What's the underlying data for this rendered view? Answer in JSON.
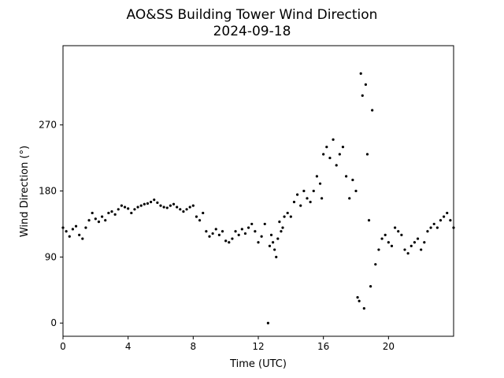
{
  "chart_data": {
    "type": "scatter",
    "title": "AO&SS Building Tower Wind Direction",
    "subtitle": "2024-09-18",
    "xlabel": "Time (UTC)",
    "ylabel": "Wind Direction (°)",
    "xlim": [
      0,
      24
    ],
    "ylim": [
      -18,
      378
    ],
    "xticks": [
      0,
      4,
      8,
      12,
      16,
      20
    ],
    "xtick_labels": [
      "0",
      "4",
      "8",
      "12",
      "16",
      "20"
    ],
    "yticks": [
      0,
      90,
      180,
      270
    ],
    "ytick_labels": [
      "0",
      "90",
      "180",
      "270"
    ],
    "grid": false,
    "marker_color": "#000000",
    "x": [
      0.0,
      0.2,
      0.4,
      0.6,
      0.8,
      1.0,
      1.2,
      1.4,
      1.6,
      1.8,
      2.0,
      2.2,
      2.4,
      2.6,
      2.8,
      3.0,
      3.2,
      3.4,
      3.6,
      3.8,
      4.0,
      4.2,
      4.4,
      4.6,
      4.8,
      5.0,
      5.2,
      5.4,
      5.6,
      5.8,
      6.0,
      6.2,
      6.4,
      6.6,
      6.8,
      7.0,
      7.2,
      7.4,
      7.6,
      7.8,
      8.0,
      8.2,
      8.4,
      8.6,
      8.8,
      9.0,
      9.2,
      9.4,
      9.6,
      9.8,
      10.0,
      10.2,
      10.4,
      10.6,
      10.8,
      11.0,
      11.2,
      11.4,
      11.6,
      11.8,
      12.0,
      12.2,
      12.4,
      12.6,
      12.7,
      12.8,
      12.9,
      13.0,
      13.1,
      13.2,
      13.3,
      13.4,
      13.5,
      13.6,
      13.8,
      14.0,
      14.2,
      14.4,
      14.6,
      14.8,
      15.0,
      15.2,
      15.4,
      15.6,
      15.8,
      15.9,
      16.0,
      16.2,
      16.4,
      16.6,
      16.8,
      17.0,
      17.2,
      17.4,
      17.6,
      17.8,
      18.0,
      18.1,
      18.2,
      18.3,
      18.4,
      18.5,
      18.6,
      18.7,
      18.8,
      18.9,
      19.0,
      19.2,
      19.4,
      19.6,
      19.8,
      20.0,
      20.2,
      20.4,
      20.6,
      20.8,
      21.0,
      21.2,
      21.4,
      21.6,
      21.8,
      22.0,
      22.2,
      22.4,
      22.6,
      22.8,
      23.0,
      23.2,
      23.4,
      23.6,
      23.8,
      24.0
    ],
    "y": [
      130,
      125,
      118,
      128,
      132,
      120,
      115,
      130,
      140,
      150,
      142,
      138,
      145,
      140,
      150,
      152,
      148,
      155,
      160,
      158,
      156,
      150,
      155,
      158,
      160,
      162,
      163,
      165,
      168,
      164,
      160,
      158,
      157,
      160,
      162,
      158,
      155,
      152,
      155,
      158,
      160,
      145,
      140,
      150,
      125,
      118,
      122,
      128,
      120,
      125,
      112,
      110,
      115,
      125,
      120,
      128,
      122,
      130,
      135,
      125,
      110,
      118,
      135,
      0,
      105,
      120,
      110,
      100,
      90,
      115,
      138,
      125,
      130,
      145,
      150,
      145,
      165,
      175,
      160,
      180,
      170,
      165,
      180,
      200,
      190,
      170,
      230,
      240,
      225,
      250,
      215,
      230,
      240,
      200,
      170,
      195,
      180,
      35,
      30,
      340,
      310,
      20,
      325,
      230,
      140,
      50,
      290,
      80,
      100,
      115,
      120,
      110,
      105,
      130,
      125,
      120,
      100,
      95,
      105,
      110,
      115,
      100,
      110,
      125,
      130,
      135,
      130,
      140,
      145,
      150,
      140,
      130
    ],
    "point_count": 132
  }
}
